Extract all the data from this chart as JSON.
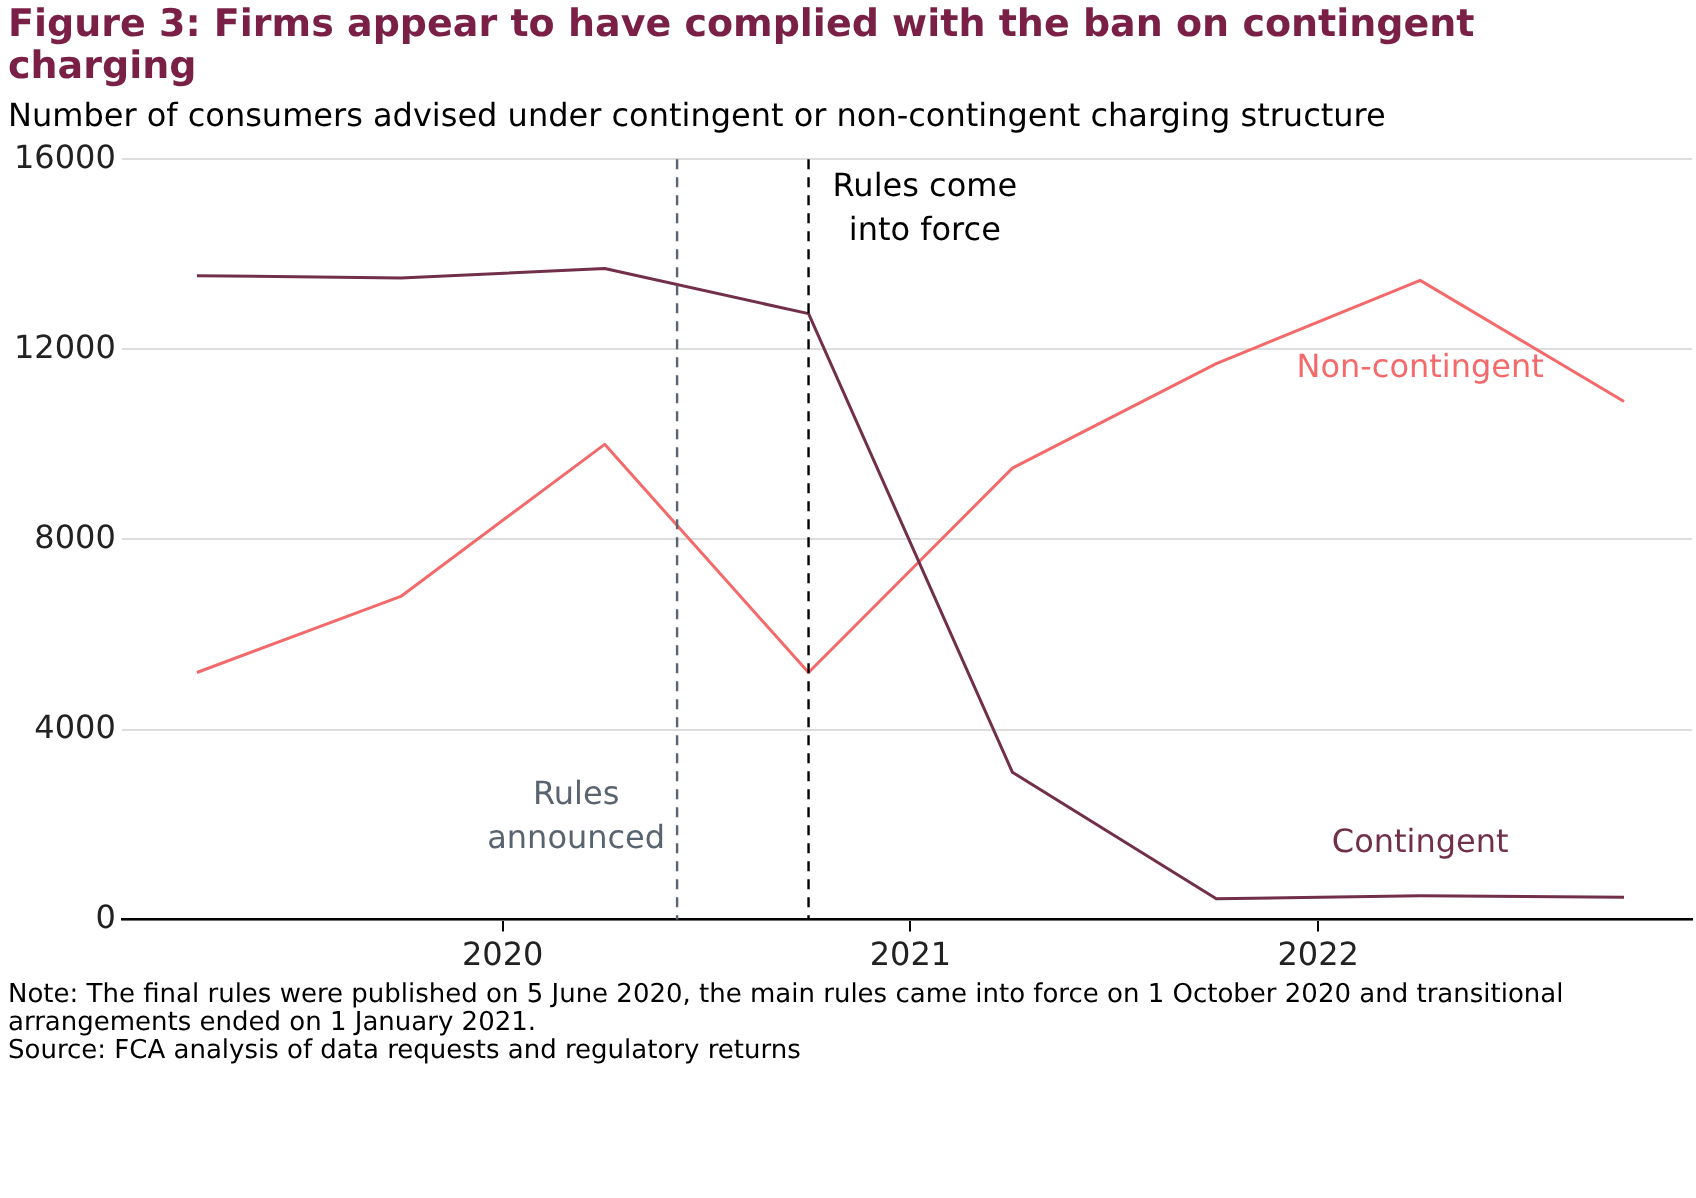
{
  "chart_data": {
    "type": "line",
    "title": "Figure 3: Firms appear to have complied with the ban on contingent charging",
    "subtitle": "Number of consumers advised under contingent or non-contingent charging structure",
    "x": [
      "2019-04",
      "2019-10",
      "2020-04",
      "2020-10",
      "2021-04",
      "2021-10",
      "2022-04",
      "2022-10"
    ],
    "series": [
      {
        "name": "Contingent",
        "color": "#722f4a",
        "values": [
          13550,
          13500,
          13700,
          12750,
          3100,
          440,
          500,
          470
        ]
      },
      {
        "name": "Non-contingent",
        "color": "#f46a6a",
        "values": [
          5200,
          6800,
          10000,
          5200,
          9500,
          11700,
          13450,
          10900
        ]
      }
    ],
    "xlim": [
      "2019-01-25",
      "2022-12-01"
    ],
    "xticks": [
      {
        "value": "2020-01-01",
        "label": "2020"
      },
      {
        "value": "2021-01-01",
        "label": "2021"
      },
      {
        "value": "2022-01-01",
        "label": "2022"
      }
    ],
    "ylim": [
      0,
      16000
    ],
    "yticks": [
      0,
      4000,
      8000,
      12000,
      16000
    ],
    "grid": "y",
    "legend": false,
    "marker": "none",
    "line_style": "solid",
    "ref_lines": [
      {
        "axis": "x",
        "value": "2020-06-05",
        "label": "Rules announced",
        "color": "#5a6470",
        "line_style": "dashed"
      },
      {
        "axis": "x",
        "value": "2020-10-01",
        "label": "Rules come into force",
        "color": "#000000",
        "line_style": "dashed"
      }
    ],
    "annotations": [
      "Note: The final rules were published on 5 June 2020, the main rules came into force on 1 October 2020 and transitional arrangements ended on 1 January 2021.",
      "Source: FCA analysis of data requests and regulatory returns"
    ]
  }
}
